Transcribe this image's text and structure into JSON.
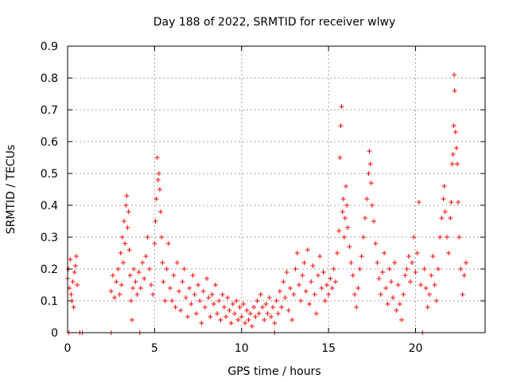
{
  "colors": {
    "series": "#ff0000",
    "grid": "#a0a0a0",
    "axis": "#000000",
    "background": "#ffffff"
  },
  "chart_data": {
    "type": "scatter",
    "title": "Day 188 of 2022, SRMTID for receiver wlwy",
    "xlabel": "GPS time / hours",
    "ylabel": "SRMTID / TECUs",
    "xlim": [
      0,
      24
    ],
    "ylim": [
      0,
      0.9
    ],
    "x_ticks": [
      0,
      5,
      10,
      15,
      20
    ],
    "x_tick_labels": [
      "0",
      "5",
      "10",
      "15",
      "20"
    ],
    "y_ticks": [
      0,
      0.1,
      0.2,
      0.3,
      0.4,
      0.5,
      0.6,
      0.7,
      0.8,
      0.9
    ],
    "y_tick_labels": [
      "0",
      "0.1",
      "0.2",
      "0.3",
      "0.4",
      "0.5",
      "0.6",
      "0.7",
      "0.8",
      "0.9"
    ],
    "grid": true,
    "marker": "+",
    "series": [
      {
        "name": "SRMTID",
        "points": [
          [
            0.0,
            0.17
          ],
          [
            0.05,
            0.2
          ],
          [
            0.1,
            0.14
          ],
          [
            0.15,
            0.23
          ],
          [
            0.2,
            0.12
          ],
          [
            0.25,
            0.1
          ],
          [
            0.3,
            0.16
          ],
          [
            0.35,
            0.08
          ],
          [
            0.4,
            0.19
          ],
          [
            0.45,
            0.21
          ],
          [
            0.5,
            0.24
          ],
          [
            0.55,
            0.15
          ],
          [
            0.08,
            0.0
          ],
          [
            0.7,
            0.0
          ],
          [
            0.85,
            0.0
          ],
          [
            2.5,
            0.13
          ],
          [
            2.6,
            0.18
          ],
          [
            2.7,
            0.11
          ],
          [
            2.8,
            0.16
          ],
          [
            2.9,
            0.2
          ],
          [
            3.0,
            0.12
          ],
          [
            3.05,
            0.25
          ],
          [
            3.1,
            0.15
          ],
          [
            3.15,
            0.3
          ],
          [
            3.2,
            0.22
          ],
          [
            3.25,
            0.35
          ],
          [
            3.3,
            0.28
          ],
          [
            3.35,
            0.4
          ],
          [
            3.4,
            0.43
          ],
          [
            3.45,
            0.33
          ],
          [
            3.5,
            0.38
          ],
          [
            3.55,
            0.26
          ],
          [
            3.6,
            0.18
          ],
          [
            3.65,
            0.1
          ],
          [
            3.7,
            0.04
          ],
          [
            3.75,
            0.14
          ],
          [
            3.8,
            0.2
          ],
          [
            3.9,
            0.16
          ],
          [
            4.0,
            0.12
          ],
          [
            4.1,
            0.19
          ],
          [
            4.2,
            0.14
          ],
          [
            4.3,
            0.22
          ],
          [
            4.4,
            0.17
          ],
          [
            4.5,
            0.24
          ],
          [
            4.6,
            0.3
          ],
          [
            4.7,
            0.2
          ],
          [
            4.8,
            0.15
          ],
          [
            4.9,
            0.12
          ],
          [
            5.0,
            0.28
          ],
          [
            5.05,
            0.35
          ],
          [
            5.1,
            0.42
          ],
          [
            5.15,
            0.55
          ],
          [
            5.2,
            0.48
          ],
          [
            5.25,
            0.5
          ],
          [
            5.3,
            0.45
          ],
          [
            5.35,
            0.38
          ],
          [
            5.4,
            0.3
          ],
          [
            5.45,
            0.22
          ],
          [
            5.5,
            0.16
          ],
          [
            5.6,
            0.1
          ],
          [
            5.7,
            0.2
          ],
          [
            5.8,
            0.28
          ],
          [
            5.9,
            0.14
          ],
          [
            2.5,
            0.0
          ],
          [
            4.15,
            0.0
          ],
          [
            6.0,
            0.1
          ],
          [
            6.1,
            0.18
          ],
          [
            6.2,
            0.08
          ],
          [
            6.3,
            0.22
          ],
          [
            6.4,
            0.13
          ],
          [
            6.5,
            0.07
          ],
          [
            6.6,
            0.16
          ],
          [
            6.7,
            0.2
          ],
          [
            6.8,
            0.11
          ],
          [
            6.9,
            0.05
          ],
          [
            7.0,
            0.14
          ],
          [
            7.1,
            0.09
          ],
          [
            7.2,
            0.18
          ],
          [
            7.3,
            0.12
          ],
          [
            7.4,
            0.06
          ],
          [
            7.5,
            0.15
          ],
          [
            7.6,
            0.1
          ],
          [
            7.7,
            0.03
          ],
          [
            7.8,
            0.13
          ],
          [
            7.9,
            0.08
          ],
          [
            8.0,
            0.17
          ],
          [
            8.1,
            0.11
          ],
          [
            8.2,
            0.05
          ],
          [
            8.3,
            0.12
          ],
          [
            8.4,
            0.09
          ],
          [
            8.5,
            0.15
          ],
          [
            8.6,
            0.06
          ],
          [
            8.7,
            0.1
          ],
          [
            8.8,
            0.04
          ],
          [
            8.9,
            0.12
          ],
          [
            9.0,
            0.08
          ],
          [
            9.1,
            0.05
          ],
          [
            9.2,
            0.11
          ],
          [
            9.3,
            0.07
          ],
          [
            9.4,
            0.03
          ],
          [
            9.5,
            0.09
          ],
          [
            9.6,
            0.06
          ],
          [
            9.7,
            0.1
          ],
          [
            9.8,
            0.04
          ],
          [
            9.9,
            0.08
          ],
          [
            10.0,
            0.05
          ],
          [
            10.1,
            0.09
          ],
          [
            10.2,
            0.03
          ],
          [
            10.3,
            0.07
          ],
          [
            10.4,
            0.04
          ],
          [
            10.5,
            0.06
          ],
          [
            10.6,
            0.02
          ],
          [
            10.7,
            0.08
          ],
          [
            10.8,
            0.05
          ],
          [
            10.9,
            0.1
          ],
          [
            11.0,
            0.06
          ],
          [
            11.1,
            0.12
          ],
          [
            11.2,
            0.08
          ],
          [
            11.3,
            0.04
          ],
          [
            11.4,
            0.09
          ],
          [
            11.5,
            0.06
          ],
          [
            11.6,
            0.11
          ],
          [
            11.7,
            0.05
          ],
          [
            11.8,
            0.08
          ],
          [
            11.9,
            0.03
          ],
          [
            12.0,
            0.1
          ],
          [
            12.1,
            0.06
          ],
          [
            12.2,
            0.13
          ],
          [
            12.3,
            0.08
          ],
          [
            12.4,
            0.16
          ],
          [
            12.5,
            0.11
          ],
          [
            12.6,
            0.19
          ],
          [
            12.7,
            0.07
          ],
          [
            12.8,
            0.14
          ],
          [
            12.9,
            0.04
          ],
          [
            13.0,
            0.12
          ],
          [
            13.1,
            0.2
          ],
          [
            13.2,
            0.25
          ],
          [
            13.3,
            0.15
          ],
          [
            13.4,
            0.1
          ],
          [
            13.5,
            0.18
          ],
          [
            13.6,
            0.22
          ],
          [
            13.7,
            0.13
          ],
          [
            13.8,
            0.26
          ],
          [
            13.9,
            0.09
          ],
          [
            14.0,
            0.16
          ],
          [
            14.1,
            0.21
          ],
          [
            14.2,
            0.12
          ],
          [
            14.3,
            0.06
          ],
          [
            14.4,
            0.18
          ],
          [
            14.5,
            0.24
          ],
          [
            14.6,
            0.14
          ],
          [
            14.7,
            0.19
          ],
          [
            14.8,
            0.1
          ],
          [
            14.9,
            0.15
          ],
          [
            11.9,
            0.0
          ],
          [
            15.0,
            0.12
          ],
          [
            15.1,
            0.17
          ],
          [
            15.2,
            0.14
          ],
          [
            15.3,
            0.2
          ],
          [
            15.4,
            0.16
          ],
          [
            15.5,
            0.25
          ],
          [
            15.6,
            0.32
          ],
          [
            15.65,
            0.55
          ],
          [
            15.7,
            0.65
          ],
          [
            15.75,
            0.71
          ],
          [
            15.8,
            0.38
          ],
          [
            15.85,
            0.42
          ],
          [
            15.9,
            0.3
          ],
          [
            15.95,
            0.36
          ],
          [
            16.0,
            0.46
          ],
          [
            16.05,
            0.4
          ],
          [
            16.1,
            0.33
          ],
          [
            16.2,
            0.27
          ],
          [
            16.3,
            0.22
          ],
          [
            16.4,
            0.18
          ],
          [
            16.5,
            0.12
          ],
          [
            16.6,
            0.08
          ],
          [
            16.7,
            0.14
          ],
          [
            16.8,
            0.2
          ],
          [
            16.9,
            0.24
          ],
          [
            17.0,
            0.3
          ],
          [
            17.1,
            0.36
          ],
          [
            17.2,
            0.42
          ],
          [
            17.3,
            0.5
          ],
          [
            17.35,
            0.57
          ],
          [
            17.4,
            0.53
          ],
          [
            17.45,
            0.47
          ],
          [
            17.5,
            0.4
          ],
          [
            17.6,
            0.35
          ],
          [
            17.7,
            0.28
          ],
          [
            17.8,
            0.22
          ],
          [
            17.9,
            0.17
          ],
          [
            18.0,
            0.12
          ],
          [
            18.1,
            0.19
          ],
          [
            18.2,
            0.25
          ],
          [
            18.3,
            0.14
          ],
          [
            18.4,
            0.09
          ],
          [
            18.5,
            0.2
          ],
          [
            18.6,
            0.16
          ],
          [
            18.7,
            0.11
          ],
          [
            18.8,
            0.22
          ],
          [
            18.9,
            0.07
          ],
          [
            19.0,
            0.15
          ],
          [
            19.1,
            0.09
          ],
          [
            19.2,
            0.04
          ],
          [
            19.3,
            0.12
          ],
          [
            19.4,
            0.18
          ],
          [
            19.5,
            0.2
          ],
          [
            19.6,
            0.24
          ],
          [
            19.7,
            0.16
          ],
          [
            19.8,
            0.22
          ],
          [
            19.9,
            0.3
          ],
          [
            20.0,
            0.19
          ],
          [
            20.1,
            0.25
          ],
          [
            20.2,
            0.41
          ],
          [
            20.3,
            0.15
          ],
          [
            20.5,
            0.2
          ],
          [
            20.6,
            0.14
          ],
          [
            20.7,
            0.08
          ],
          [
            20.8,
            0.12
          ],
          [
            20.9,
            0.18
          ],
          [
            21.0,
            0.24
          ],
          [
            21.1,
            0.15
          ],
          [
            21.2,
            0.1
          ],
          [
            21.3,
            0.2
          ],
          [
            21.4,
            0.3
          ],
          [
            21.5,
            0.36
          ],
          [
            21.6,
            0.42
          ],
          [
            21.65,
            0.46
          ],
          [
            21.7,
            0.38
          ],
          [
            21.8,
            0.3
          ],
          [
            21.9,
            0.25
          ],
          [
            22.0,
            0.36
          ],
          [
            22.05,
            0.41
          ],
          [
            22.1,
            0.53
          ],
          [
            22.15,
            0.56
          ],
          [
            22.2,
            0.65
          ],
          [
            22.22,
            0.81
          ],
          [
            22.25,
            0.76
          ],
          [
            22.3,
            0.63
          ],
          [
            22.35,
            0.58
          ],
          [
            22.4,
            0.53
          ],
          [
            22.45,
            0.41
          ],
          [
            22.5,
            0.3
          ],
          [
            22.6,
            0.2
          ],
          [
            22.7,
            0.12
          ],
          [
            22.8,
            0.18
          ],
          [
            22.9,
            0.22
          ],
          [
            20.4,
            0.0
          ]
        ]
      }
    ]
  }
}
